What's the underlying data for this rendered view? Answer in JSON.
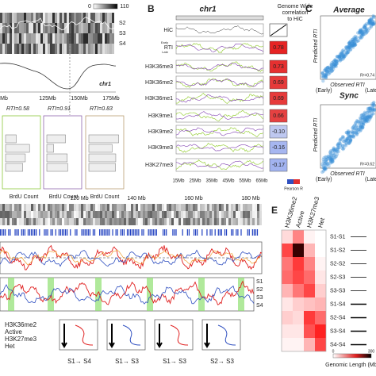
{
  "panel_a": {
    "colorbar": {
      "min_label": "0",
      "max_label": "110"
    },
    "states": [
      "S2",
      "S3",
      "S4"
    ],
    "chrom": "chr1",
    "axis_labels": [
      "Mb",
      "125Mb",
      "150Mb",
      "175Mb"
    ],
    "rti_labels": [
      "RTI=0.58",
      "RTI=0.91",
      "RTI=0.83"
    ],
    "xlabel": "BrdU Count"
  },
  "panel_b": {
    "label": "B",
    "title": "chr1",
    "header": [
      "Genome Wide",
      "correlation",
      "to HiC"
    ],
    "rows": [
      "HiC",
      "RTI",
      "H3K36me3",
      "H3K36me2",
      "H3K36me1",
      "H3K9me1",
      "H3K9me2",
      "H3K9me3",
      "H3K27me3"
    ],
    "rti_sublabels": [
      "Early",
      "Late"
    ],
    "values": [
      0.78,
      0.73,
      0.69,
      0.69,
      0.66,
      -0.1,
      -0.16,
      -0.17
    ],
    "value_labels": [
      "0.78",
      "0.73",
      "0.69",
      "0.69",
      "0.66",
      "-0.10",
      "-0.16",
      "-0.17"
    ],
    "xticks": [
      "15Mb",
      "25Mb",
      "35Mb",
      "45Mb",
      "55Mb",
      "65Mb"
    ],
    "colorbar_label": "Pearson R"
  },
  "panel_c": {
    "label": "C",
    "plots": [
      {
        "title": "Average",
        "r2": "R²=0.74"
      },
      {
        "title": "Sync",
        "r2": "R²=0.62"
      }
    ],
    "ylabel": "Predicted RTI",
    "xlabel": "Observed RTI",
    "early": "(Early)",
    "late": "(Late)"
  },
  "panel_d": {
    "xticks": [
      "120 Mb",
      "140 Mb",
      "160 Mb",
      "180 Mb"
    ],
    "states": [
      "S1",
      "S2",
      "S3",
      "S4"
    ],
    "legend": [
      {
        "name": "H3K36me2",
        "color": "#f0a030"
      },
      {
        "name": "Active",
        "color": "#e02020"
      },
      {
        "name": "H3K27me3",
        "color": "#3050c0"
      },
      {
        "name": "Het",
        "color": "#999999"
      }
    ],
    "transitions": [
      "S1→ S4",
      "S1→ S3",
      "S2→ S3"
    ]
  },
  "panel_e": {
    "label": "E",
    "columns": [
      "H3K36me2",
      "Active",
      "H3K27me3",
      "Het"
    ],
    "column_colors": [
      "#f0a030",
      "#e02020",
      "#3050c0",
      "#999999"
    ],
    "rows": [
      "S1-S1",
      "S1-S2",
      "S2-S2",
      "S2-S3",
      "S3-S3",
      "S1-S4",
      "S2-S4",
      "S3-S4",
      "S4-S4"
    ],
    "values": [
      [
        30,
        100,
        10,
        0
      ],
      [
        150,
        300,
        60,
        0
      ],
      [
        110,
        160,
        100,
        10
      ],
      [
        120,
        150,
        120,
        20
      ],
      [
        60,
        110,
        150,
        40
      ],
      [
        20,
        40,
        50,
        60
      ],
      [
        40,
        30,
        160,
        120
      ],
      [
        20,
        20,
        140,
        180
      ],
      [
        10,
        10,
        60,
        150
      ]
    ],
    "colorbar": {
      "min": 0,
      "max": 300
    },
    "colorbar_label": "Genomic Length (Mb)"
  }
}
